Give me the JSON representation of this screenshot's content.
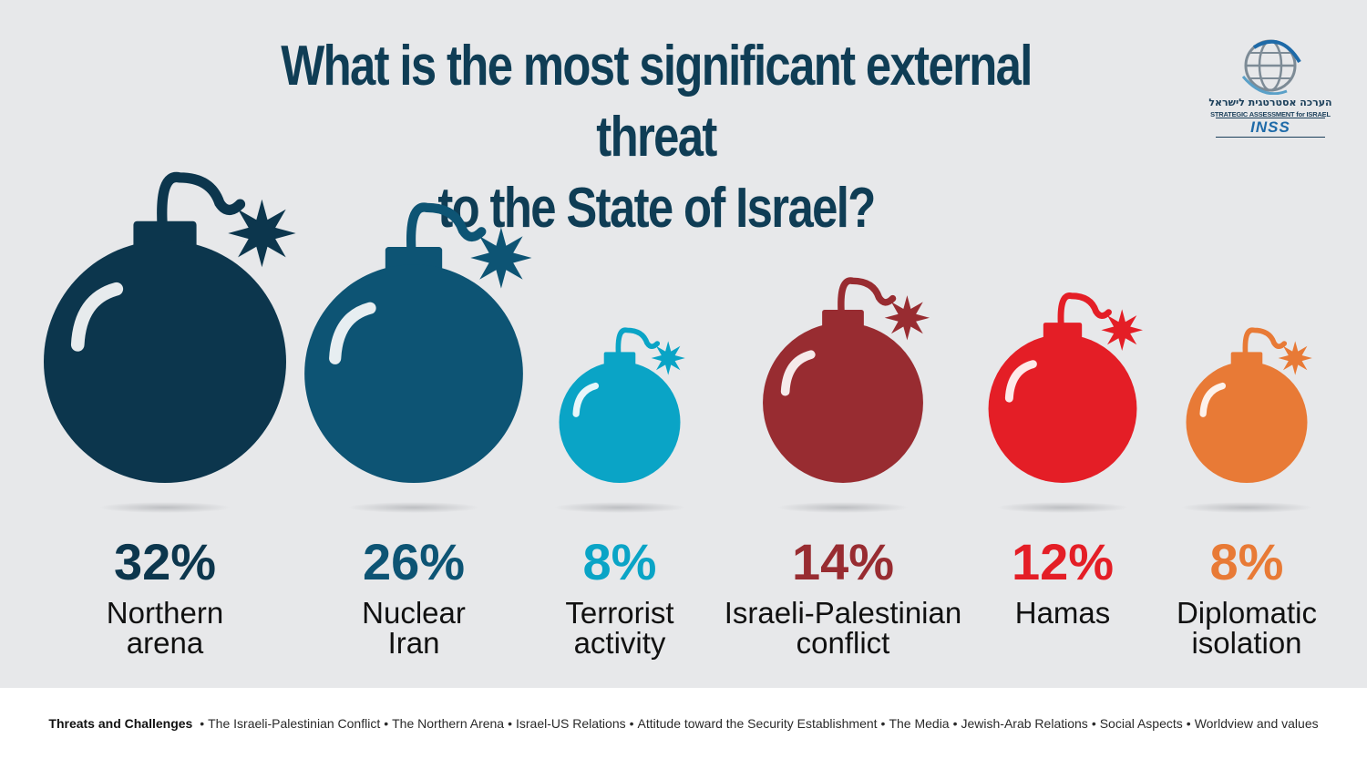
{
  "title": {
    "line1": "What is the most significant external threat",
    "line2": "to the State of Israel?"
  },
  "logo": {
    "icon": "globe-icon",
    "hebrew": "הערכה אסטרטגית לישראל",
    "subtitle": "STRATEGIC ASSESSMENT for ISRAEL",
    "brand": "INSS"
  },
  "chart_data": {
    "type": "bar",
    "categories": [
      "Northern arena",
      "Nuclear Iran",
      "Terrorist activity",
      "Israeli-Palestinian conflict",
      "Hamas",
      "Diplomatic isolation"
    ],
    "values": [
      32,
      26,
      8,
      14,
      12,
      8
    ],
    "value_labels": [
      "32%",
      "26%",
      "8%",
      "14%",
      "12%",
      "8%"
    ],
    "label_lines": [
      [
        "Northern",
        "arena"
      ],
      [
        "Nuclear",
        "Iran"
      ],
      [
        "Terrorist",
        "activity"
      ],
      [
        "Israeli-Palestinian",
        "conflict"
      ],
      [
        "Hamas"
      ],
      [
        "Diplomatic",
        "isolation"
      ]
    ],
    "colors": [
      "#0c364d",
      "#0d5474",
      "#0aa4c6",
      "#982c31",
      "#e41e26",
      "#e87a36"
    ],
    "mark": "bomb-icon"
  },
  "footer": {
    "lead": "Threats and Challenges",
    "separator": "•",
    "items": [
      "The Israeli-Palestinian Conflict",
      "The Northern  Arena",
      "Israel-US Relations",
      "Attitude toward the Security Establishment",
      "The Media",
      "Jewish-Arab Relations",
      "Social Aspects",
      "Worldview and values"
    ]
  }
}
